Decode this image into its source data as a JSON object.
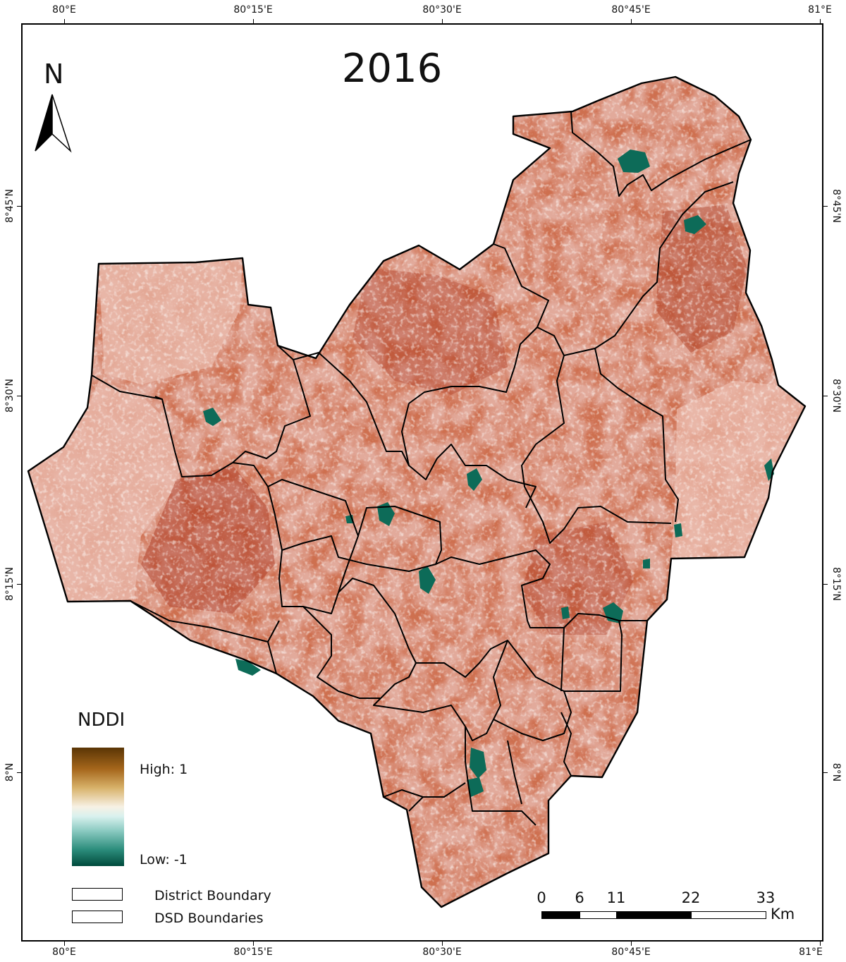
{
  "map": {
    "title": "2016",
    "north_letter": "N",
    "longitude_labels": [
      "80°E",
      "80°15'E",
      "80°30'E",
      "80°45'E",
      "81°E"
    ],
    "latitude_labels": [
      "8°45'N",
      "8°30'N",
      "8°15'N",
      "8°N"
    ]
  },
  "legend": {
    "title": "NDDI",
    "high_label": "High: 1",
    "low_label": "Low: -1",
    "district_label": "District Boundary",
    "dsd_label": "DSD Boundaries"
  },
  "scalebar": {
    "ticks": [
      "0",
      "6",
      "11",
      "22",
      "33"
    ],
    "unit": "Km"
  },
  "colors": {
    "high": "#5a3505",
    "mid": "#f7f1e4",
    "low": "#004a3c",
    "land_base": "#e2aa9b",
    "dry_patch": "#a8341c",
    "wet_patch": "#0d6b58"
  }
}
